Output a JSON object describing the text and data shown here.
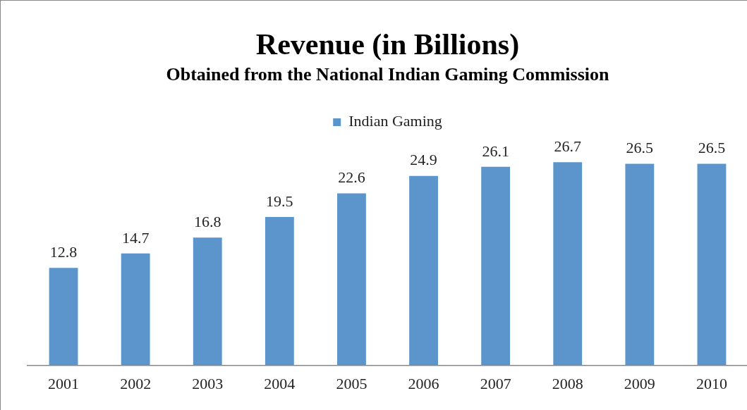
{
  "chart_data": {
    "type": "bar",
    "title": "Revenue (in Billions)",
    "subtitle": "Obtained from the National Indian Gaming Commission",
    "categories": [
      "2001",
      "2002",
      "2003",
      "2004",
      "2005",
      "2006",
      "2007",
      "2008",
      "2009",
      "2010"
    ],
    "series": [
      {
        "name": "Indian Gaming",
        "color": "#5b95cc",
        "values": [
          12.8,
          14.7,
          16.8,
          19.5,
          22.6,
          24.9,
          26.1,
          26.7,
          26.5,
          26.5
        ]
      }
    ],
    "data_labels": true,
    "legend": "top",
    "grid": false
  }
}
